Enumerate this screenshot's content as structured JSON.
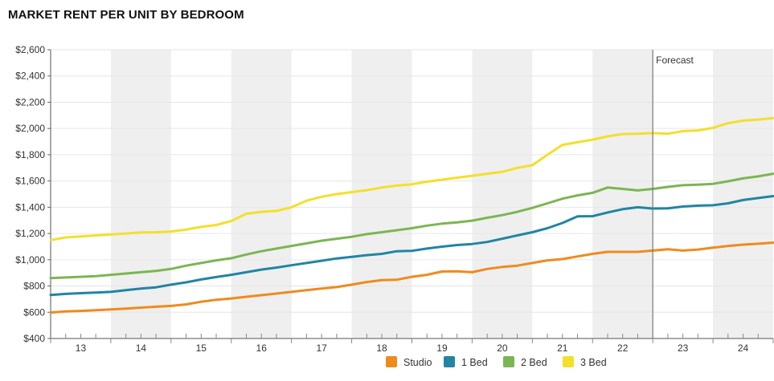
{
  "chart_data": {
    "type": "line",
    "title": "MARKET RENT PER UNIT BY BEDROOM",
    "xlabel": "",
    "ylabel": "",
    "x_ticks": [
      "13",
      "14",
      "15",
      "16",
      "17",
      "18",
      "19",
      "20",
      "21",
      "22",
      "23",
      "24"
    ],
    "x_range": [
      2013.0,
      2025.0
    ],
    "ylim": [
      400,
      2600
    ],
    "y_ticks": [
      400,
      600,
      800,
      1000,
      1200,
      1400,
      1600,
      1800,
      2000,
      2200,
      2400,
      2600
    ],
    "y_tick_labels": [
      "$400",
      "$600",
      "$800",
      "$1,000",
      "$1,200",
      "$1,400",
      "$1,600",
      "$1,800",
      "$2,000",
      "$2,200",
      "$2,400",
      "$2,600"
    ],
    "grid": true,
    "shaded_alternate_years": true,
    "legend_position": "bottom-right",
    "annotation": {
      "label": "Forecast",
      "x": 2023.0
    },
    "colors": {
      "Studio": "#EE8B1E",
      "1 Bed": "#2185A3",
      "2 Bed": "#7BB652",
      "3 Bed": "#F2E02C",
      "forecast_line": "#777777",
      "band": "#EFEFEF",
      "gridline": "#E6E6E6"
    },
    "series": [
      {
        "name": "Studio",
        "x": [
          2013.0,
          2013.25,
          2013.5,
          2013.75,
          2014.0,
          2014.25,
          2014.5,
          2014.75,
          2015.0,
          2015.25,
          2015.5,
          2015.75,
          2016.0,
          2016.25,
          2016.5,
          2016.75,
          2017.0,
          2017.25,
          2017.5,
          2017.75,
          2018.0,
          2018.25,
          2018.5,
          2018.75,
          2019.0,
          2019.25,
          2019.5,
          2019.75,
          2020.0,
          2020.25,
          2020.5,
          2020.75,
          2021.0,
          2021.25,
          2021.5,
          2021.75,
          2022.0,
          2022.25,
          2022.5,
          2022.75,
          2023.0,
          2023.25,
          2023.5,
          2023.75,
          2024.0,
          2024.25,
          2024.5,
          2024.75,
          2025.0
        ],
        "values": [
          598,
          606,
          610,
          615,
          622,
          628,
          635,
          642,
          648,
          660,
          680,
          695,
          705,
          718,
          730,
          742,
          755,
          768,
          780,
          792,
          810,
          830,
          845,
          848,
          870,
          885,
          910,
          912,
          905,
          930,
          945,
          955,
          975,
          995,
          1005,
          1025,
          1045,
          1060,
          1060,
          1060,
          1070,
          1080,
          1070,
          1078,
          1092,
          1105,
          1115,
          1122,
          1130
        ]
      },
      {
        "name": "1 Bed",
        "x": [
          2013.0,
          2013.25,
          2013.5,
          2013.75,
          2014.0,
          2014.25,
          2014.5,
          2014.75,
          2015.0,
          2015.25,
          2015.5,
          2015.75,
          2016.0,
          2016.25,
          2016.5,
          2016.75,
          2017.0,
          2017.25,
          2017.5,
          2017.75,
          2018.0,
          2018.25,
          2018.5,
          2018.75,
          2019.0,
          2019.25,
          2019.5,
          2019.75,
          2020.0,
          2020.25,
          2020.5,
          2020.75,
          2021.0,
          2021.25,
          2021.5,
          2021.75,
          2022.0,
          2022.25,
          2022.5,
          2022.75,
          2023.0,
          2023.25,
          2023.5,
          2023.75,
          2024.0,
          2024.25,
          2024.5,
          2024.75,
          2025.0
        ],
        "values": [
          732,
          740,
          745,
          750,
          755,
          768,
          780,
          790,
          810,
          828,
          850,
          868,
          885,
          905,
          925,
          940,
          958,
          975,
          992,
          1010,
          1022,
          1035,
          1045,
          1065,
          1068,
          1085,
          1100,
          1112,
          1120,
          1135,
          1160,
          1185,
          1210,
          1240,
          1280,
          1330,
          1332,
          1360,
          1385,
          1400,
          1390,
          1392,
          1405,
          1412,
          1415,
          1430,
          1455,
          1470,
          1485
        ]
      },
      {
        "name": "2 Bed",
        "x": [
          2013.0,
          2013.25,
          2013.5,
          2013.75,
          2014.0,
          2014.25,
          2014.5,
          2014.75,
          2015.0,
          2015.25,
          2015.5,
          2015.75,
          2016.0,
          2016.25,
          2016.5,
          2016.75,
          2017.0,
          2017.25,
          2017.5,
          2017.75,
          2018.0,
          2018.25,
          2018.5,
          2018.75,
          2019.0,
          2019.25,
          2019.5,
          2019.75,
          2020.0,
          2020.25,
          2020.5,
          2020.75,
          2021.0,
          2021.25,
          2021.5,
          2021.75,
          2022.0,
          2022.25,
          2022.5,
          2022.75,
          2023.0,
          2023.25,
          2023.5,
          2023.75,
          2024.0,
          2024.25,
          2024.5,
          2024.75,
          2025.0
        ],
        "values": [
          860,
          865,
          870,
          875,
          885,
          895,
          905,
          915,
          930,
          955,
          975,
          995,
          1012,
          1040,
          1065,
          1085,
          1105,
          1125,
          1145,
          1160,
          1175,
          1195,
          1210,
          1225,
          1240,
          1260,
          1275,
          1285,
          1298,
          1320,
          1340,
          1365,
          1395,
          1430,
          1465,
          1490,
          1510,
          1550,
          1540,
          1528,
          1540,
          1555,
          1568,
          1572,
          1578,
          1598,
          1620,
          1635,
          1655
        ]
      },
      {
        "name": "3 Bed",
        "x": [
          2013.0,
          2013.25,
          2013.5,
          2013.75,
          2014.0,
          2014.25,
          2014.5,
          2014.75,
          2015.0,
          2015.25,
          2015.5,
          2015.75,
          2016.0,
          2016.25,
          2016.5,
          2016.75,
          2017.0,
          2017.25,
          2017.5,
          2017.75,
          2018.0,
          2018.25,
          2018.5,
          2018.75,
          2019.0,
          2019.25,
          2019.5,
          2019.75,
          2020.0,
          2020.25,
          2020.5,
          2020.75,
          2021.0,
          2021.25,
          2021.5,
          2021.75,
          2022.0,
          2022.25,
          2022.5,
          2022.75,
          2023.0,
          2023.25,
          2023.5,
          2023.75,
          2024.0,
          2024.25,
          2024.5,
          2024.75,
          2025.0
        ],
        "values": [
          1150,
          1170,
          1178,
          1185,
          1192,
          1200,
          1208,
          1210,
          1215,
          1230,
          1250,
          1265,
          1295,
          1350,
          1365,
          1372,
          1400,
          1450,
          1480,
          1500,
          1515,
          1530,
          1550,
          1565,
          1575,
          1595,
          1610,
          1625,
          1640,
          1655,
          1670,
          1700,
          1720,
          1800,
          1875,
          1895,
          1915,
          1940,
          1958,
          1960,
          1965,
          1960,
          1980,
          1985,
          2005,
          2040,
          2060,
          2068,
          2080
        ]
      }
    ]
  }
}
